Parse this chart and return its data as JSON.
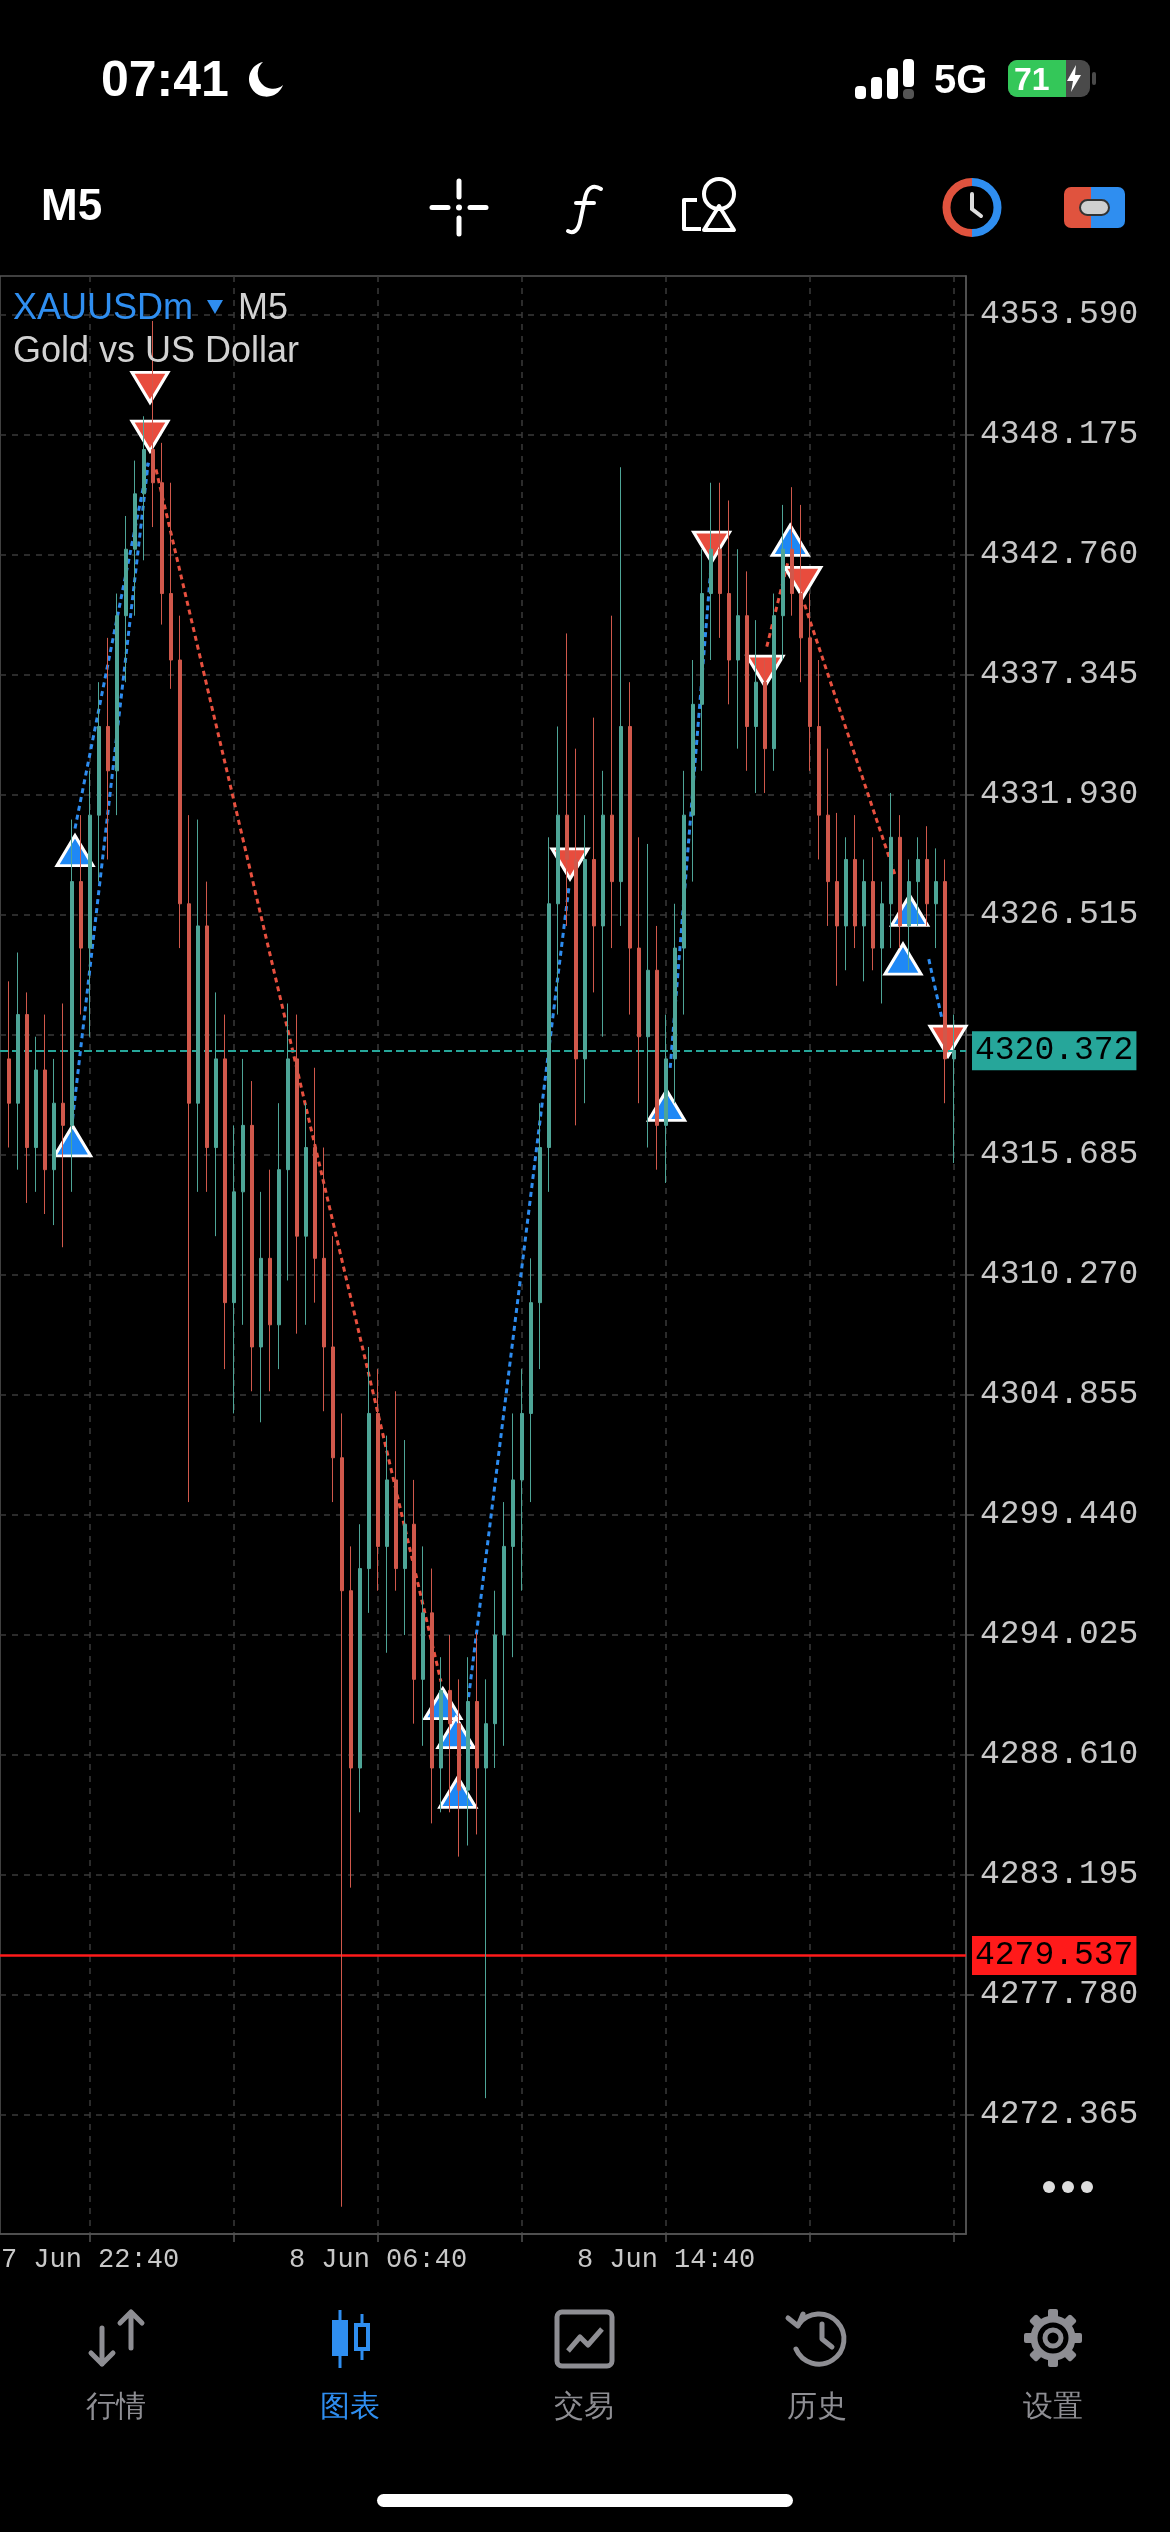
{
  "chart_data": [
    {
      "type": "other",
      "annotations": [
        "07:41",
        "5G",
        "71",
        "M5"
      ]
    },
    {
      "type": "candlestick",
      "title": "XAUUSDm",
      "subtitle": "Gold vs US Dollar",
      "annotations": [
        "M5"
      ],
      "x": [
        "--06-07T20:25",
        "--06-07T20:40",
        "--06-07T20:55",
        "--06-07T21:10",
        "--06-07T21:25",
        "--06-07T21:40",
        "--06-07T21:55",
        "--06-07T22:10",
        "--06-07T22:25",
        "--06-07T22:40",
        "--06-07T22:55",
        "--06-07T23:10",
        "--06-07T23:25",
        "--06-07T23:40",
        "--06-07T23:55",
        "--06-08T00:10",
        "--06-08T00:25",
        "--06-08T00:40",
        "--06-08T00:55",
        "--06-08T01:10",
        "--06-08T01:25",
        "--06-08T01:40",
        "--06-08T01:55",
        "--06-08T02:10",
        "--06-08T02:25",
        "--06-08T02:40",
        "--06-08T02:55",
        "--06-08T03:10",
        "--06-08T03:25",
        "--06-08T03:40",
        "--06-08T03:55",
        "--06-08T04:10",
        "--06-08T04:25",
        "--06-08T04:40",
        "--06-08T04:55",
        "--06-08T05:10",
        "--06-08T05:25",
        "--06-08T05:40",
        "--06-08T05:55",
        "--06-08T06:10",
        "--06-08T06:25",
        "--06-08T06:40",
        "--06-08T06:55",
        "--06-08T07:10",
        "--06-08T07:25",
        "--06-08T07:40",
        "--06-08T07:55",
        "--06-08T08:10",
        "--06-08T08:25",
        "--06-08T08:40",
        "--06-08T08:55",
        "--06-08T09:10",
        "--06-08T09:25",
        "--06-08T09:40",
        "--06-08T09:55",
        "--06-08T10:10",
        "--06-08T10:25",
        "--06-08T10:40",
        "--06-08T10:55",
        "--06-08T11:10",
        "--06-08T11:25",
        "--06-08T11:40",
        "--06-08T11:55",
        "--06-08T12:10",
        "--06-08T12:25",
        "--06-08T12:40",
        "--06-08T12:55",
        "--06-08T13:10",
        "--06-08T13:25",
        "--06-08T13:40",
        "--06-08T13:55",
        "--06-08T14:10",
        "--06-08T14:25",
        "--06-08T14:40",
        "--06-08T14:55",
        "--06-08T15:10",
        "--06-08T15:25",
        "--06-08T15:40",
        "--06-08T15:55",
        "--06-08T16:10",
        "--06-08T16:25",
        "--06-08T16:40",
        "--06-08T16:55",
        "--06-08T17:10",
        "--06-08T17:25",
        "--06-08T17:40",
        "--06-08T17:55",
        "--06-08T18:10",
        "--06-08T18:25",
        "--06-08T18:40",
        "--06-08T18:55",
        "--06-08T19:10",
        "--06-08T19:25",
        "--06-08T19:40",
        "--06-08T19:55",
        "--06-08T20:10",
        "--06-08T20:25",
        "--06-08T20:40",
        "--06-08T20:55",
        "--06-08T21:10",
        "--06-08T21:25",
        "--06-08T21:40",
        "--06-08T21:55",
        "--06-08T22:10",
        "--06-08T22:25",
        "--06-08T22:40"
      ],
      "ohlc": [
        [
          4320,
          4323.5,
          4316,
          4318
        ],
        [
          4318,
          4324.8,
          4315,
          4322
        ],
        [
          4322,
          4323,
          4313.5,
          4316
        ],
        [
          4316,
          4321,
          4314,
          4319.5
        ],
        [
          4319.5,
          4322,
          4313,
          4315
        ],
        [
          4315,
          4320,
          4312.5,
          4318
        ],
        [
          4318,
          4322.5,
          4311.5,
          4317
        ],
        [
          4317,
          4330.8,
          4314,
          4328
        ],
        [
          4328,
          4331,
          4322,
          4325
        ],
        [
          4325,
          4333,
          4321,
          4331
        ],
        [
          4331,
          4337,
          4328,
          4335
        ],
        [
          4335,
          4339,
          4329,
          4333
        ],
        [
          4333,
          4341,
          4331,
          4340
        ],
        [
          4340,
          4344.5,
          4337,
          4343
        ],
        [
          4343,
          4347,
          4340,
          4345.5
        ],
        [
          4345.5,
          4349,
          4342.5,
          4347.5
        ],
        [
          4347.5,
          4353.3,
          4344,
          4346
        ],
        [
          4346,
          4347.8,
          4339.6,
          4341
        ],
        [
          4341,
          4346,
          4336.7,
          4338
        ],
        [
          4338,
          4340,
          4325,
          4327
        ],
        [
          4327,
          4331,
          4300,
          4318
        ],
        [
          4318,
          4330.8,
          4314,
          4326
        ],
        [
          4326,
          4328,
          4314,
          4316
        ],
        [
          4316,
          4323,
          4312,
          4320
        ],
        [
          4320,
          4322,
          4306,
          4309
        ],
        [
          4309,
          4317,
          4304,
          4314
        ],
        [
          4314,
          4320,
          4308,
          4317
        ],
        [
          4317,
          4319,
          4305,
          4307
        ],
        [
          4307,
          4314,
          4303.6,
          4311
        ],
        [
          4311,
          4315,
          4305,
          4308
        ],
        [
          4308,
          4318,
          4306,
          4315
        ],
        [
          4315,
          4322.5,
          4310,
          4320
        ],
        [
          4320,
          4322,
          4307.6,
          4312
        ],
        [
          4312,
          4318,
          4308,
          4316
        ],
        [
          4316,
          4319.6,
          4309,
          4311
        ],
        [
          4311,
          4316,
          4304.1,
          4307
        ],
        [
          4307,
          4312,
          4300,
          4302
        ],
        [
          4302,
          4304,
          4268.2,
          4296
        ],
        [
          4296,
          4298,
          4282.6,
          4288
        ],
        [
          4288,
          4299,
          4286,
          4297
        ],
        [
          4297,
          4307,
          4295,
          4304
        ],
        [
          4304,
          4306,
          4296,
          4298
        ],
        [
          4298,
          4303,
          4293.2,
          4301
        ],
        [
          4301,
          4305,
          4296,
          4297
        ],
        [
          4297,
          4302.8,
          4294,
          4299
        ],
        [
          4299,
          4301,
          4290,
          4292
        ],
        [
          4292,
          4298,
          4289,
          4295
        ],
        [
          4295,
          4297,
          4285.5,
          4288
        ],
        [
          4288,
          4293,
          4286,
          4291.5
        ],
        [
          4291.5,
          4294,
          4286,
          4290
        ],
        [
          4290,
          4292,
          4284,
          4287
        ],
        [
          4287,
          4293,
          4284.5,
          4291
        ],
        [
          4291,
          4294.1,
          4285,
          4288
        ],
        [
          4288,
          4292,
          4273.1,
          4290
        ],
        [
          4290,
          4296,
          4288,
          4294
        ],
        [
          4294,
          4300,
          4289,
          4298
        ],
        [
          4298,
          4304,
          4293,
          4301
        ],
        [
          4301,
          4306,
          4296,
          4304
        ],
        [
          4304,
          4311,
          4300,
          4309
        ],
        [
          4309,
          4318,
          4306,
          4316
        ],
        [
          4316,
          4330,
          4314,
          4327
        ],
        [
          4327,
          4335,
          4322,
          4331
        ],
        [
          4331,
          4339.2,
          4326,
          4329
        ],
        [
          4329,
          4334,
          4317,
          4320
        ],
        [
          4320,
          4331,
          4318,
          4329
        ],
        [
          4329,
          4335.4,
          4323,
          4326
        ],
        [
          4326,
          4333,
          4321,
          4331
        ],
        [
          4331,
          4340,
          4325,
          4328
        ],
        [
          4328,
          4346.7,
          4326,
          4335
        ],
        [
          4335,
          4337,
          4322,
          4325
        ],
        [
          4325,
          4330,
          4318,
          4321
        ],
        [
          4321,
          4329.7,
          4316,
          4324
        ],
        [
          4324,
          4326,
          4315,
          4317
        ],
        [
          4317,
          4322,
          4314.4,
          4320
        ],
        [
          4320,
          4327,
          4318,
          4325
        ],
        [
          4325,
          4333,
          4322,
          4331
        ],
        [
          4331,
          4338,
          4328,
          4336
        ],
        [
          4336,
          4343,
          4333,
          4341
        ],
        [
          4341,
          4346,
          4338,
          4343
        ],
        [
          4343,
          4346,
          4339,
          4341
        ],
        [
          4341,
          4345.2,
          4336,
          4338
        ],
        [
          4338,
          4343,
          4334,
          4340
        ],
        [
          4340,
          4342,
          4333,
          4335
        ],
        [
          4335,
          4339.8,
          4332,
          4337
        ],
        [
          4337,
          4338,
          4332,
          4334
        ],
        [
          4334,
          4341,
          4333,
          4340
        ],
        [
          4340,
          4345,
          4338,
          4343
        ],
        [
          4343,
          4345.8,
          4340,
          4341
        ],
        [
          4341,
          4345,
          4337,
          4339
        ],
        [
          4339,
          4341,
          4333,
          4335
        ],
        [
          4335,
          4338,
          4329,
          4331
        ],
        [
          4331,
          4334,
          4326,
          4328
        ],
        [
          4328,
          4331.1,
          4323.3,
          4326
        ],
        [
          4326,
          4330,
          4324,
          4329
        ],
        [
          4329,
          4331,
          4325,
          4326
        ],
        [
          4326,
          4329,
          4323.5,
          4328
        ],
        [
          4328,
          4330,
          4324,
          4325
        ],
        [
          4325,
          4328,
          4322.5,
          4327
        ],
        [
          4327,
          4332,
          4325,
          4330
        ],
        [
          4330,
          4331,
          4325,
          4326
        ],
        [
          4326,
          4329,
          4324,
          4328
        ],
        [
          4328,
          4330,
          4326,
          4329
        ],
        [
          4329,
          4330.5,
          4326,
          4327
        ],
        [
          4327,
          4329.5,
          4325,
          4328
        ],
        [
          4328,
          4329,
          4318,
          4320
        ],
        [
          4320,
          4322,
          4315.3,
          4320.372
        ]
      ],
      "colors": [
        "#d0584b",
        "#4ea597",
        "#d0584b",
        "#4ea597",
        "#d0584b",
        "#4ea597",
        "#d0584b",
        "#4ea597",
        "#d0584b",
        "#4ea597",
        "#4ea597",
        "#d0584b",
        "#4ea597",
        "#4ea597",
        "#4ea597",
        "#4ea597",
        "#d0584b",
        "#d0584b",
        "#d0584b",
        "#d0584b",
        "#d0584b",
        "#4ea597",
        "#d0584b",
        "#4ea597",
        "#d0584b",
        "#4ea597",
        "#4ea597",
        "#d0584b",
        "#4ea597",
        "#d0584b",
        "#4ea597",
        "#4ea597",
        "#d0584b",
        "#4ea597",
        "#d0584b",
        "#d0584b",
        "#d0584b",
        "#d0584b",
        "#d0584b",
        "#4ea597",
        "#4ea597",
        "#d0584b",
        "#4ea597",
        "#d0584b",
        "#4ea597",
        "#d0584b",
        "#4ea597",
        "#d0584b",
        "#4ea597",
        "#d0584b",
        "#d0584b",
        "#4ea597",
        "#d0584b",
        "#4ea597",
        "#4ea597",
        "#4ea597",
        "#4ea597",
        "#4ea597",
        "#4ea597",
        "#4ea597",
        "#4ea597",
        "#4ea597",
        "#d0584b",
        "#d0584b",
        "#4ea597",
        "#d0584b",
        "#4ea597",
        "#d0584b",
        "#4ea597",
        "#d0584b",
        "#d0584b",
        "#4ea597",
        "#d0584b",
        "#4ea597",
        "#4ea597",
        "#4ea597",
        "#4ea597",
        "#4ea597",
        "#4ea597",
        "#d0584b",
        "#d0584b",
        "#4ea597",
        "#d0584b",
        "#4ea597",
        "#d0584b",
        "#4ea597",
        "#4ea597",
        "#d0584b",
        "#d0584b",
        "#d0584b",
        "#d0584b",
        "#d0584b",
        "#d0584b",
        "#4ea597",
        "#d0584b",
        "#4ea597",
        "#d0584b",
        "#4ea597",
        "#4ea597",
        "#d0584b",
        "#4ea597",
        "#4ea597",
        "#d0584b",
        "#4ea597",
        "#d0584b",
        "#4ea597"
      ],
      "series": [
        {
          "type": "line",
          "color": "#2d8cf0",
          "line_style": "dashed",
          "marker": "none",
          "x": [
            "--06-07T22:11",
            "--06-08T00:17"
          ],
          "values": [
            4317.3,
            4346.9
          ]
        },
        {
          "type": "line",
          "color": "#2d8cf0",
          "line_style": "dashed",
          "marker": "none",
          "x": [
            "--06-07T22:15",
            "--06-08T00:17"
          ],
          "values": [
            4330.4,
            4346.9
          ]
        },
        {
          "type": "line",
          "color": "#e8503f",
          "line_style": "dashed",
          "marker": "none",
          "x": [
            "--06-08T00:30",
            "--06-08T08:25"
          ],
          "values": [
            4346.6,
            4291.9
          ]
        },
        {
          "type": "line",
          "color": "#2d8cf0",
          "line_style": "dashed",
          "marker": "none",
          "x": [
            "--06-08T09:11",
            "--06-08T11:58"
          ],
          "values": [
            4291.2,
            4327.7
          ]
        },
        {
          "type": "line",
          "color": "#2d8cf0",
          "line_style": "dashed",
          "marker": "none",
          "x": [
            "--06-08T14:47",
            "--06-08T15:54"
          ],
          "values": [
            4319.6,
            4341.9
          ]
        },
        {
          "type": "line",
          "color": "#e8503f",
          "line_style": "dashed",
          "marker": "none",
          "x": [
            "--06-08T17:28",
            "--06-08T18:03"
          ],
          "values": [
            4338.6,
            4342.4
          ]
        },
        {
          "type": "line",
          "color": "#e8503f",
          "line_style": "dashed",
          "marker": "none",
          "x": [
            "--06-08T18:31",
            "--06-08T21:03"
          ],
          "values": [
            4340.5,
            4328.2
          ]
        },
        {
          "type": "line",
          "color": "#2d8cf0",
          "line_style": "dashed",
          "marker": "none",
          "x": [
            "--06-08T21:58",
            "--06-08T22:20"
          ],
          "values": [
            4324.5,
            4321.8
          ]
        },
        {
          "type": "scatter",
          "color": "#e84c3d",
          "marker": "triangle",
          "x": [
            "--06-08T00:20",
            "--06-08T00:20",
            "--06-08T12:00",
            "--06-08T15:56",
            "--06-08T17:25",
            "--06-08T18:28",
            "--06-08T22:30"
          ],
          "values": [
            4350.3,
            4348.1,
            4328.8,
            4343.1,
            4337.5,
            4341.5,
            4320.8
          ]
        },
        {
          "type": "scatter",
          "color": "#1e88f5",
          "marker": "triangle",
          "x": [
            "--06-07T22:11",
            "--06-07T22:15",
            "--06-08T08:28",
            "--06-08T08:50",
            "--06-08T08:53",
            "--06-08T14:41",
            "--06-08T18:07",
            "--06-08T21:15",
            "--06-08T21:26"
          ],
          "values": [
            4316.3,
            4329.4,
            4290.9,
            4289.6,
            4286.9,
            4317.9,
            4343.4,
            4324.5,
            4326.7
          ]
        }
      ],
      "xlim": [
        "--06-07T20:10",
        "--06-08T23:00"
      ],
      "xticks": [
        {
          "value": "--06-07T22:40",
          "label": "7 Jun 22:40"
        },
        {
          "value": "--06-08T02:40",
          "label": null
        },
        {
          "value": "--06-08T06:40",
          "label": "8 Jun 06:40"
        },
        {
          "value": "--06-08T10:40",
          "label": null
        },
        {
          "value": "--06-08T14:40",
          "label": "8 Jun 14:40"
        },
        {
          "value": "--06-08T18:40",
          "label": null
        },
        {
          "value": "--06-08T22:40",
          "label": null
        }
      ],
      "ylim": [
        4266.97,
        4355.33
      ],
      "yticks": [
        {
          "value": 4353.59,
          "label": "4353.590"
        },
        4348.175,
        {
          "value": 4342.76,
          "label": "4342.760"
        },
        4337.345,
        {
          "value": 4331.93,
          "label": "4331.930"
        },
        4326.515,
        {
          "value": 4321.1,
          "label": null
        },
        4315.685,
        {
          "value": 4310.27,
          "label": "4310.270"
        },
        4304.855,
        {
          "value": 4299.44,
          "label": "4299.440"
        },
        4294.025,
        {
          "value": 4288.61,
          "label": "4288.610"
        },
        4283.195,
        {
          "value": 4277.78,
          "label": "4277.780"
        },
        4272.365
      ],
      "grid": true,
      "ref_lines": [
        {
          "axis": "y",
          "value": 4320.372,
          "label": "4320.372",
          "color": "#26a69a",
          "line_style": "dashed"
        },
        {
          "axis": "y",
          "value": 4279.537,
          "label": "4279.537",
          "color": "#ff1a1a",
          "line_style": "solid"
        }
      ]
    },
    {
      "type": "other",
      "annotations": [
        "行情",
        "图表",
        "交易",
        "历史",
        "设置"
      ]
    }
  ]
}
